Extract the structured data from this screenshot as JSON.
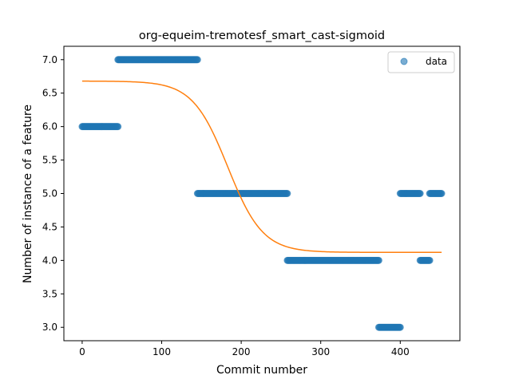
{
  "chart_data": {
    "type": "scatter",
    "title": "org-equeim-tremotesf_smart_cast-sigmoid",
    "xlabel": "Commit number",
    "ylabel": "Number of instance of a feature",
    "xlim": [
      -23,
      475
    ],
    "ylim": [
      2.8,
      7.2
    ],
    "xticks": [
      0,
      100,
      200,
      300,
      400
    ],
    "yticks": [
      3.0,
      3.5,
      4.0,
      4.5,
      5.0,
      5.5,
      6.0,
      6.5,
      7.0
    ],
    "grid": false,
    "legend": {
      "position": "top-right",
      "entries": [
        "data"
      ]
    },
    "series": [
      {
        "name": "data",
        "kind": "points",
        "color": "#1f77b4",
        "segments": [
          {
            "x_start": 0,
            "x_end": 45,
            "y": 6.0
          },
          {
            "x_start": 45,
            "x_end": 145,
            "y": 7.0
          },
          {
            "x_start": 145,
            "x_end": 258,
            "y": 5.0
          },
          {
            "x_start": 258,
            "x_end": 373,
            "y": 4.0
          },
          {
            "x_start": 373,
            "x_end": 400,
            "y": 3.0
          },
          {
            "x_start": 400,
            "x_end": 425,
            "y": 5.0
          },
          {
            "x_start": 425,
            "x_end": 437,
            "y": 4.0
          },
          {
            "x_start": 437,
            "x_end": 452,
            "y": 5.0
          }
        ]
      },
      {
        "name": "",
        "kind": "sigmoid-fit",
        "color": "#ff7f0e",
        "x_range": [
          0,
          452
        ],
        "y_high": 6.68,
        "y_low": 4.12,
        "x_mid": 183,
        "scale": 22
      }
    ]
  }
}
